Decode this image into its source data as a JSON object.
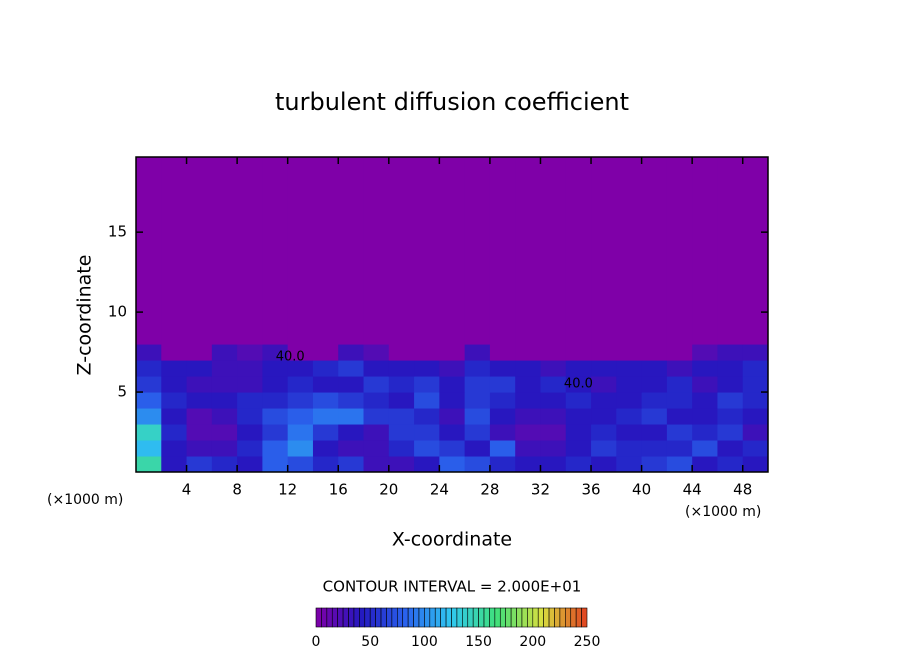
{
  "chart_data": {
    "type": "heatmap",
    "title": "turbulent diffusion coefficient",
    "xlabel": "X-coordinate",
    "ylabel": "Z-coordinate",
    "x_unit": "(×1000 m)",
    "contour_interval": "CONTOUR INTERVAL = 2.000E+01",
    "xlim": [
      0,
      50
    ],
    "ylim": [
      0,
      19.7
    ],
    "xticks": [
      4,
      8,
      12,
      16,
      20,
      24,
      28,
      32,
      36,
      40,
      44,
      48
    ],
    "yticks": [
      5,
      10,
      15
    ],
    "x_edges": [
      0,
      2,
      4,
      6,
      8,
      10,
      12,
      14,
      16,
      18,
      20,
      22,
      24,
      26,
      28,
      30,
      32,
      34,
      36,
      38,
      40,
      42,
      44,
      46,
      48,
      50
    ],
    "y_edges": [
      0,
      1,
      2,
      3,
      4,
      5,
      6,
      7,
      8,
      19.7
    ],
    "values": [
      [
        150,
        40,
        60,
        50,
        40,
        80,
        70,
        50,
        60,
        30,
        30,
        40,
        80,
        70,
        50,
        40,
        40,
        50,
        40,
        50,
        60,
        70,
        40,
        50,
        40
      ],
      [
        120,
        40,
        30,
        30,
        50,
        80,
        100,
        40,
        30,
        30,
        50,
        70,
        60,
        40,
        80,
        30,
        30,
        40,
        60,
        50,
        50,
        50,
        70,
        40,
        50
      ],
      [
        140,
        50,
        20,
        20,
        40,
        60,
        90,
        60,
        40,
        30,
        60,
        60,
        40,
        60,
        30,
        20,
        20,
        40,
        50,
        40,
        40,
        60,
        50,
        60,
        30
      ],
      [
        100,
        40,
        20,
        30,
        50,
        70,
        80,
        90,
        90,
        60,
        60,
        50,
        30,
        70,
        40,
        30,
        30,
        40,
        40,
        50,
        60,
        40,
        40,
        50,
        40
      ],
      [
        80,
        50,
        40,
        40,
        50,
        50,
        60,
        70,
        60,
        50,
        40,
        70,
        40,
        60,
        50,
        40,
        40,
        50,
        40,
        40,
        50,
        50,
        40,
        60,
        50
      ],
      [
        60,
        40,
        30,
        30,
        30,
        40,
        50,
        40,
        40,
        60,
        50,
        60,
        40,
        60,
        60,
        40,
        50,
        40,
        30,
        40,
        40,
        50,
        30,
        40,
        50
      ],
      [
        50,
        40,
        40,
        30,
        30,
        40,
        40,
        50,
        60,
        40,
        40,
        40,
        30,
        50,
        40,
        40,
        30,
        40,
        40,
        40,
        40,
        30,
        40,
        40,
        50
      ],
      [
        30,
        0,
        0,
        30,
        20,
        30,
        0,
        0,
        30,
        20,
        0,
        0,
        0,
        30,
        0,
        0,
        0,
        0,
        0,
        0,
        0,
        0,
        20,
        30,
        30
      ],
      [
        0,
        0,
        0,
        0,
        0,
        0,
        0,
        0,
        0,
        0,
        0,
        0,
        0,
        0,
        0,
        0,
        0,
        0,
        0,
        0,
        0,
        0,
        0,
        0,
        0
      ]
    ],
    "clim": [
      0,
      250
    ],
    "colormap": [
      "#7f00a8",
      "#2418c0",
      "#2a64ee",
      "#30c8f0",
      "#40e07a",
      "#d8e040",
      "#e04020"
    ],
    "colorbar_ticks": [
      0,
      50,
      100,
      150,
      200,
      250
    ],
    "annotations": [
      {
        "text": "40.0",
        "x": 12.2,
        "y": 7.2
      },
      {
        "text": "40.0",
        "x": 35,
        "y": 5.5
      }
    ]
  }
}
